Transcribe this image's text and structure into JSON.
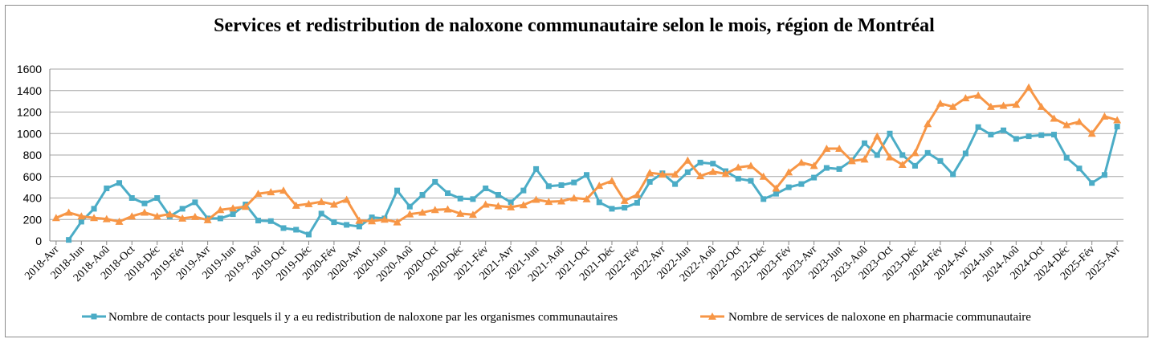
{
  "chart_data": {
    "type": "line",
    "title": "Services et redistribution de naloxone communautaire selon le mois, région de Montréal",
    "xlabel": "",
    "ylabel": "",
    "ylim": [
      0,
      1600
    ],
    "yticks": [
      0,
      200,
      400,
      600,
      800,
      1000,
      1200,
      1400,
      1600
    ],
    "grid": true,
    "legend_position": "bottom",
    "x": [
      "2018-Avr",
      "2018-Mai",
      "2018-Jun",
      "2018-Jul",
      "2018-Aoû",
      "2018-Sep",
      "2018-Oct",
      "2018-Nov",
      "2018-Déc",
      "2019-Jan",
      "2019-Fév",
      "2019-Mar",
      "2019-Avr",
      "2019-Mai",
      "2019-Jun",
      "2019-Jul",
      "2019-Aoû",
      "2019-Sep",
      "2019-Oct",
      "2019-Nov",
      "2019-Déc",
      "2020-Jan",
      "2020-Fév",
      "2020-Mar",
      "2020-Avr",
      "2020-Mai",
      "2020-Jun",
      "2020-Jul",
      "2020-Aoû",
      "2020-Sep",
      "2020-Oct",
      "2020-Nov",
      "2020-Déc",
      "2021-Jan",
      "2021-Fév",
      "2021-Mar",
      "2021-Avr",
      "2021-Mai",
      "2021-Jun",
      "2021-Jul",
      "2021-Aoû",
      "2021-Sep",
      "2021-Oct",
      "2021-Nov",
      "2021-Déc",
      "2022-Jan",
      "2022-Fév",
      "2022-Mar",
      "2022-Avr",
      "2022-Mai",
      "2022-Jun",
      "2022-Jul",
      "2022-Aoû",
      "2022-Sep",
      "2022-Oct",
      "2022-Nov",
      "2022-Déc",
      "2023-Jan",
      "2023-Fév",
      "2023-Mar",
      "2023-Avr",
      "2023-Mai",
      "2023-Jun",
      "2023-Jul",
      "2023-Aoû",
      "2023-Sep",
      "2023-Oct",
      "2023-Nov",
      "2023-Déc",
      "2024-Jan",
      "2024-Fév",
      "2024-Mar",
      "2024-Avr",
      "2024-Mai",
      "2024-Jun",
      "2024-Jul",
      "2024-Aoû",
      "2024-Sep",
      "2024-Oct",
      "2024-Nov",
      "2024-Déc",
      "2025-Jan",
      "2025-Fév",
      "2025-Mar",
      "2025-Avr"
    ],
    "xtick_labels": [
      "2018-Avr",
      "2018-Jun",
      "2018-Aoû",
      "2018-Oct",
      "2018-Déc",
      "2019-Fév",
      "2019-Avr",
      "2019-Jun",
      "2019-Aoû",
      "2019-Oct",
      "2019-Déc",
      "2020-Fév",
      "2020-Avr",
      "2020-Jun",
      "2020-Aoû",
      "2020-Oct",
      "2020-Déc",
      "2021-Fév",
      "2021-Avr",
      "2021-Jun",
      "2021-Aoû",
      "2021-Oct",
      "2021-Déc",
      "2022-Fév",
      "2022-Avr",
      "2022-Jun",
      "2022-Aoû",
      "2022-Oct",
      "2022-Déc",
      "2023-Fév",
      "2023-Avr",
      "2023-Jun",
      "2023-Aoû",
      "2023-Oct",
      "2023-Déc",
      "2024-Fév",
      "2024-Avr",
      "2024-Jun",
      "2024-Aoû",
      "2024-Oct",
      "2024-Déc",
      "2025-Fév",
      "2025-Avr"
    ],
    "series": [
      {
        "name": "Nombre de contacts pour lesquels il y a eu redistribution de naloxone par les organismes communautaires",
        "color": "#4BACC6",
        "marker": "square",
        "values": [
          null,
          10,
          180,
          300,
          490,
          540,
          400,
          350,
          400,
          230,
          300,
          360,
          210,
          210,
          250,
          340,
          190,
          185,
          120,
          105,
          60,
          255,
          175,
          150,
          135,
          220,
          210,
          470,
          320,
          430,
          550,
          445,
          395,
          390,
          490,
          430,
          360,
          470,
          670,
          510,
          520,
          545,
          615,
          360,
          300,
          310,
          355,
          550,
          630,
          530,
          640,
          730,
          720,
          650,
          580,
          560,
          390,
          440,
          500,
          530,
          590,
          680,
          670,
          750,
          910,
          800,
          1000,
          800,
          700,
          820,
          745,
          620,
          815,
          1060,
          990,
          1030,
          950,
          975,
          985,
          990,
          775,
          675,
          540,
          615,
          1065
        ]
      },
      {
        "name": "Nombre de services de naloxone en pharmacie communautaire",
        "color": "#F79646",
        "marker": "triangle",
        "values": [
          215,
          265,
          230,
          215,
          205,
          180,
          230,
          265,
          230,
          250,
          210,
          225,
          195,
          290,
          305,
          320,
          440,
          455,
          470,
          330,
          345,
          365,
          340,
          385,
          190,
          185,
          200,
          175,
          250,
          265,
          290,
          295,
          255,
          245,
          340,
          325,
          315,
          335,
          385,
          365,
          370,
          400,
          390,
          515,
          560,
          375,
          430,
          635,
          620,
          620,
          750,
          605,
          645,
          625,
          685,
          700,
          600,
          490,
          640,
          730,
          700,
          860,
          860,
          745,
          760,
          975,
          780,
          710,
          820,
          1090,
          1280,
          1250,
          1330,
          1355,
          1250,
          1260,
          1270,
          1430,
          1250,
          1140,
          1080,
          1110,
          1000,
          1160,
          1125
        ]
      }
    ]
  }
}
